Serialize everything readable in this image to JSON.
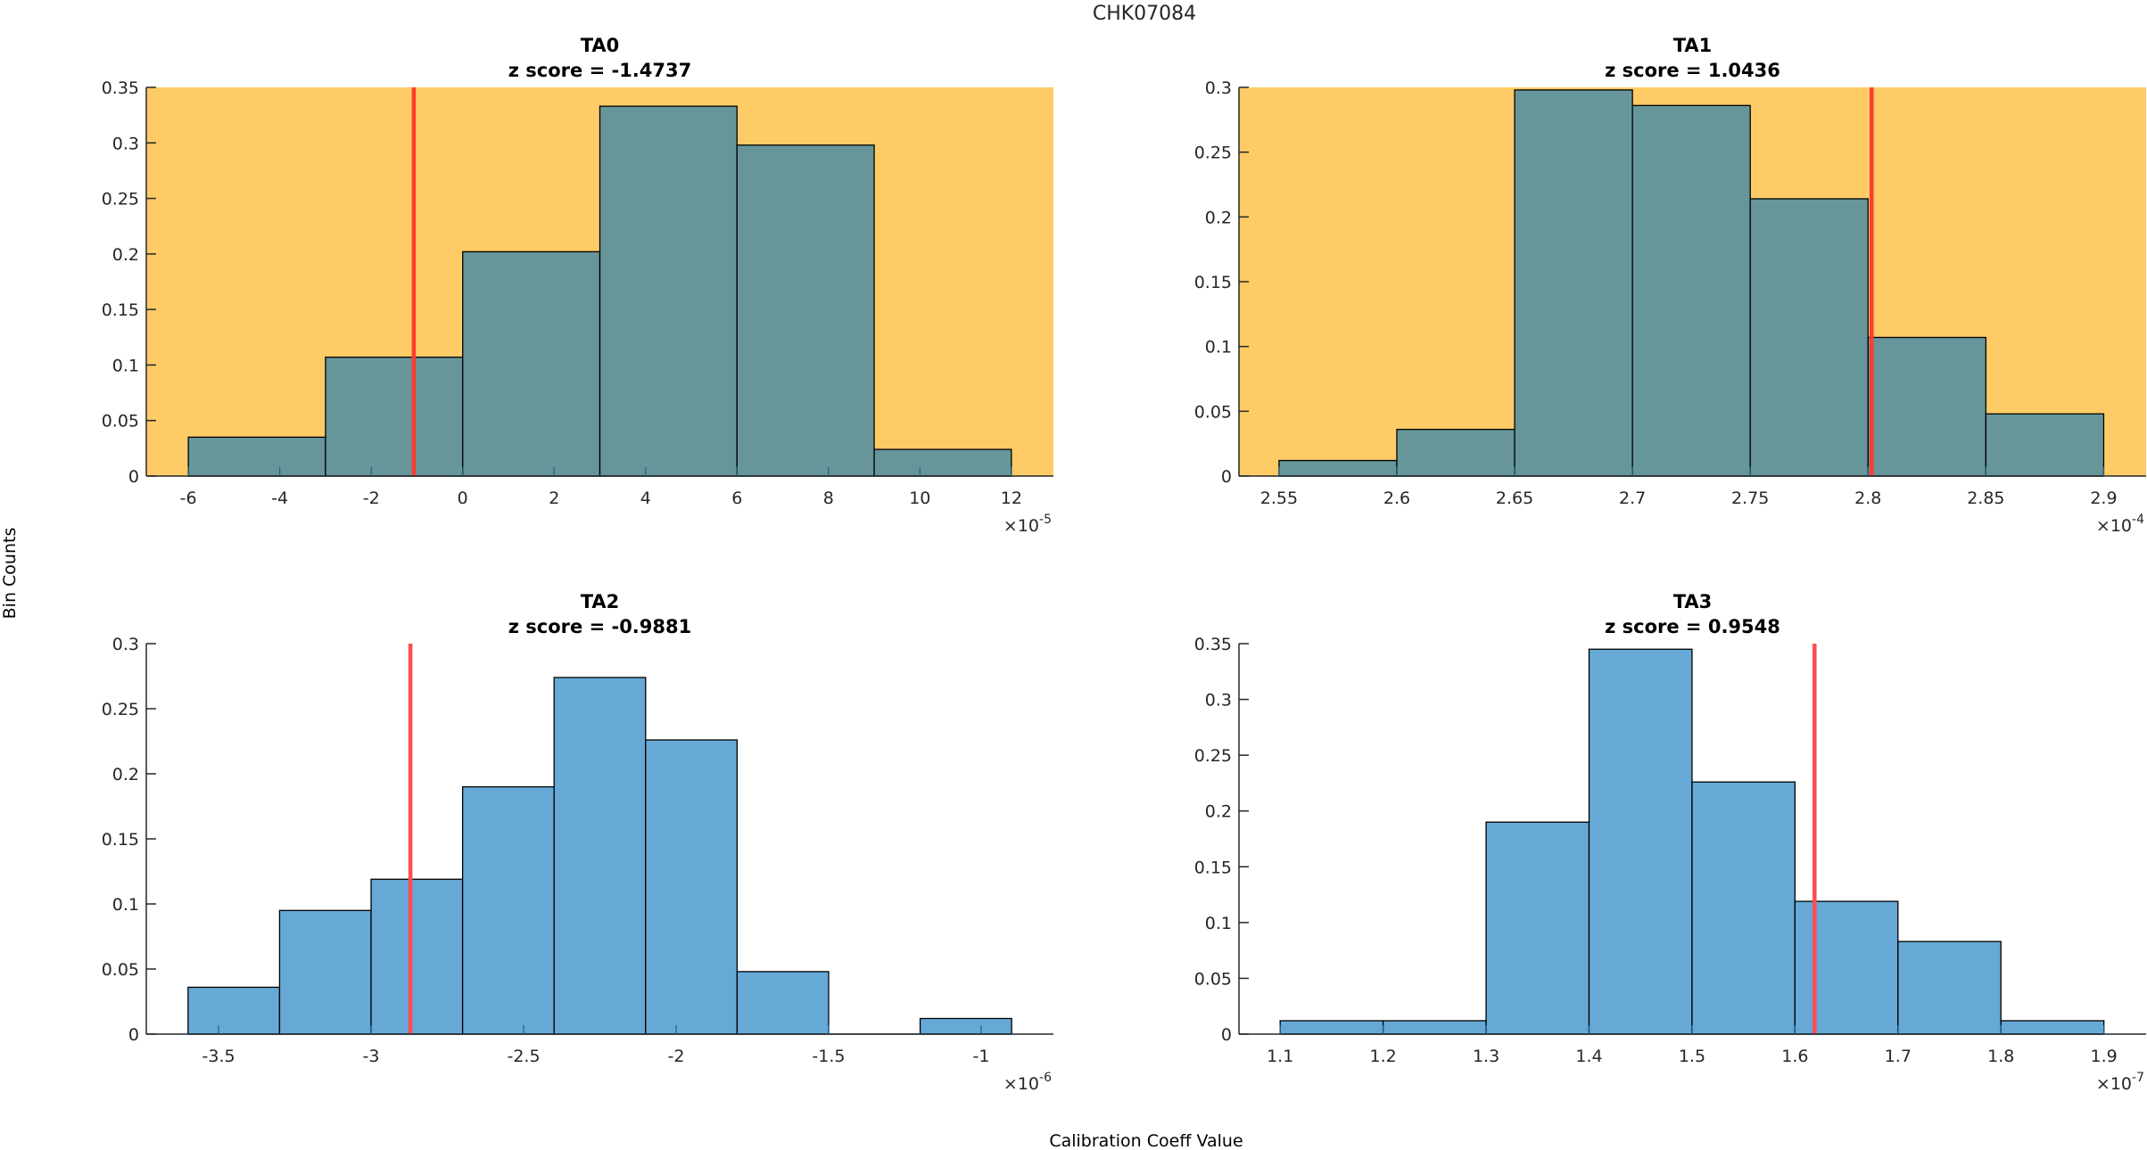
{
  "figure": {
    "title": "CHK07084",
    "ylabel": "Bin Counts",
    "xlabel": "Calibration Coeff Value"
  },
  "chart_data": [
    {
      "type": "bar",
      "subtype": "histogram",
      "name": "TA0",
      "title": "TA0",
      "subtitle": "z score = -1.4737",
      "background": "#fecb66",
      "bar_color": "#669699",
      "marker_color": "#ff3b2e",
      "x_exponent": "-5",
      "bin_edges": [
        -6,
        -3,
        0,
        3,
        6,
        9,
        12
      ],
      "values": [
        0.035,
        0.107,
        0.202,
        0.333,
        0.298,
        0.024
      ],
      "marker_x": -1.07,
      "xlim": [
        -6.92,
        12.92
      ],
      "ylim": [
        0,
        0.35
      ],
      "xticks": [
        -6,
        -4,
        -2,
        0,
        2,
        4,
        6,
        8,
        10,
        12
      ],
      "xtick_labels": [
        "-6",
        "-4",
        "-2",
        "0",
        "2",
        "4",
        "6",
        "8",
        "10",
        "12"
      ],
      "yticks": [
        0,
        0.05,
        0.1,
        0.15,
        0.2,
        0.25,
        0.3,
        0.35
      ],
      "ytick_labels": [
        "0",
        "0.05",
        "0.1",
        "0.15",
        "0.2",
        "0.25",
        "0.3",
        "0.35"
      ],
      "grid": false
    },
    {
      "type": "bar",
      "subtype": "histogram",
      "name": "TA1",
      "title": "TA1",
      "subtitle": "z score = 1.0436",
      "background": "#fecb66",
      "bar_color": "#669699",
      "marker_color": "#ff3b2e",
      "x_exponent": "-4",
      "bin_edges": [
        2.55,
        2.6,
        2.65,
        2.7,
        2.75,
        2.8,
        2.85,
        2.9
      ],
      "values": [
        0.012,
        0.036,
        0.298,
        0.286,
        0.214,
        0.107,
        0.048
      ],
      "marker_x": 2.8015,
      "xlim": [
        2.533,
        2.918
      ],
      "ylim": [
        0,
        0.3
      ],
      "xticks": [
        2.55,
        2.6,
        2.65,
        2.7,
        2.75,
        2.8,
        2.85,
        2.9
      ],
      "xtick_labels": [
        "2.55",
        "2.6",
        "2.65",
        "2.7",
        "2.75",
        "2.8",
        "2.85",
        "2.9"
      ],
      "yticks": [
        0,
        0.05,
        0.1,
        0.15,
        0.2,
        0.25,
        0.3
      ],
      "ytick_labels": [
        "0",
        "0.05",
        "0.1",
        "0.15",
        "0.2",
        "0.25",
        "0.3"
      ],
      "grid": false
    },
    {
      "type": "bar",
      "subtype": "histogram",
      "name": "TA2",
      "title": "TA2",
      "subtitle": "z score = -0.9881",
      "background": "#ffffff",
      "bar_color": "#66a9d7",
      "marker_color": "#ff4d4d",
      "x_exponent": "-6",
      "bin_edges": [
        -3.6,
        -3.3,
        -3.0,
        -2.7,
        -2.4,
        -2.1,
        -1.8,
        -1.5,
        -1.2,
        -0.9
      ],
      "values": [
        0.036,
        0.095,
        0.119,
        0.19,
        0.274,
        0.226,
        0.048,
        0,
        0.012
      ],
      "marker_x": -2.871,
      "xlim": [
        -3.737,
        -0.763
      ],
      "ylim": [
        0,
        0.3
      ],
      "xticks": [
        -3.5,
        -3,
        -2.5,
        -2,
        -1.5,
        -1
      ],
      "xtick_labels": [
        "-3.5",
        "-3",
        "-2.5",
        "-2",
        "-1.5",
        "-1"
      ],
      "yticks": [
        0,
        0.05,
        0.1,
        0.15,
        0.2,
        0.25,
        0.3
      ],
      "ytick_labels": [
        "0",
        "0.05",
        "0.1",
        "0.15",
        "0.2",
        "0.25",
        "0.3"
      ],
      "grid": false
    },
    {
      "type": "bar",
      "subtype": "histogram",
      "name": "TA3",
      "title": "TA3",
      "subtitle": "z score = 0.9548",
      "background": "#ffffff",
      "bar_color": "#66a9d7",
      "marker_color": "#ff4d4d",
      "x_exponent": "-7",
      "bin_edges": [
        1.1,
        1.2,
        1.3,
        1.4,
        1.5,
        1.6,
        1.7,
        1.8,
        1.9
      ],
      "values": [
        0.012,
        0.012,
        0.19,
        0.345,
        0.226,
        0.119,
        0.083,
        0.012
      ],
      "marker_x": 1.619,
      "xlim": [
        1.06,
        1.941
      ],
      "ylim": [
        0,
        0.35
      ],
      "xticks": [
        1.1,
        1.2,
        1.3,
        1.4,
        1.5,
        1.6,
        1.7,
        1.8,
        1.9
      ],
      "xtick_labels": [
        "1.1",
        "1.2",
        "1.3",
        "1.4",
        "1.5",
        "1.6",
        "1.7",
        "1.8",
        "1.9"
      ],
      "yticks": [
        0,
        0.05,
        0.1,
        0.15,
        0.2,
        0.25,
        0.3,
        0.35
      ],
      "ytick_labels": [
        "0",
        "0.05",
        "0.1",
        "0.15",
        "0.2",
        "0.25",
        "0.3",
        "0.35"
      ],
      "grid": false
    }
  ]
}
